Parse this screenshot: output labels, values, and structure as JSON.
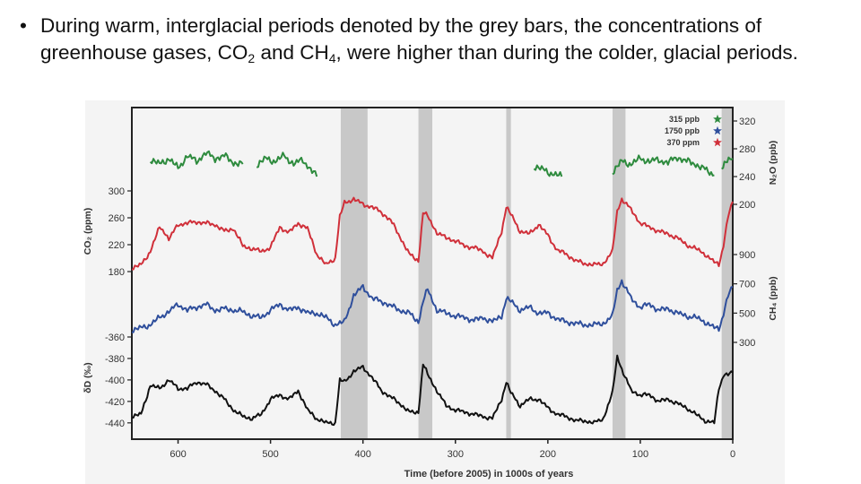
{
  "slide": {
    "bullet_char": "•",
    "text_part1": "During warm, interglacial periods denoted by the grey bars, the concentrations of greenhouse gases, CO",
    "sub_co2": "2",
    "text_part2": " and CH",
    "sub_ch4": "4",
    "text_part3": ", were higher than during the colder, glacial periods."
  },
  "chart_data": {
    "type": "line",
    "title": "",
    "xlabel": "Time (before 2005) in 1000s of years",
    "x_ticks": [
      600,
      500,
      400,
      300,
      200,
      100,
      0
    ],
    "xlim": [
      650,
      0
    ],
    "colors": {
      "n2o": "#2e8b3e",
      "co2": "#d0303a",
      "ch4": "#2f4f9c",
      "dd": "#111111",
      "bars": "#c8c8c8"
    },
    "interglacial_bars": [
      {
        "from": 424,
        "to": 395
      },
      {
        "from": 340,
        "to": 325
      },
      {
        "from": 245,
        "to": 240
      },
      {
        "from": 130,
        "to": 116
      },
      {
        "from": 12,
        "to": 0
      }
    ],
    "legend": [
      {
        "label": "315 ppb",
        "color": "#2e8b3e"
      },
      {
        "label": "1750 ppb",
        "color": "#2f4f9c"
      },
      {
        "label": "370 ppm",
        "color": "#d0303a"
      }
    ],
    "series": [
      {
        "name": "N2O",
        "unit": "ppb",
        "axis_label": "N₂O (ppb)",
        "axis": "right",
        "ylim": [
          200,
          320
        ],
        "ticks": [
          320,
          280,
          240,
          200
        ],
        "segments": [
          {
            "x": [
              630,
              620,
              610,
              600,
              590,
              580,
              570,
              560,
              550,
              540,
              530
            ],
            "y": [
              264,
              258,
              266,
              252,
              270,
              262,
              274,
              266,
              270,
              260,
              258
            ]
          },
          {
            "x": [
              515,
              505,
              495,
              485,
              475,
              465,
              455,
              450
            ],
            "y": [
              256,
              266,
              262,
              270,
              258,
              264,
              248,
              240
            ]
          },
          {
            "x": [
              215,
              205,
              195,
              185
            ],
            "y": [
              254,
              250,
              244,
              240
            ]
          },
          {
            "x": [
              130,
              120,
              110,
              100,
              90,
              80,
              70,
              60,
              50,
              40,
              30,
              20
            ],
            "y": [
              246,
              262,
              258,
              266,
              262,
              264,
              260,
              268,
              262,
              258,
              250,
              242
            ]
          },
          {
            "x": [
              12,
              6,
              0
            ],
            "y": [
              254,
              262,
              266
            ]
          }
        ]
      },
      {
        "name": "CO2",
        "unit": "ppm",
        "axis_label": "CO₂ (ppm)",
        "axis": "left",
        "ylim": [
          160,
          320
        ],
        "ticks": [
          300,
          260,
          220,
          180
        ],
        "x": [
          650,
          640,
          630,
          620,
          615,
          610,
          600,
          590,
          580,
          570,
          560,
          550,
          540,
          530,
          520,
          510,
          500,
          490,
          480,
          470,
          460,
          450,
          440,
          430,
          425,
          420,
          410,
          400,
          390,
          380,
          370,
          360,
          350,
          340,
          335,
          330,
          320,
          310,
          300,
          290,
          280,
          270,
          260,
          250,
          245,
          240,
          230,
          220,
          210,
          200,
          190,
          180,
          170,
          160,
          150,
          140,
          130,
          125,
          120,
          110,
          100,
          90,
          80,
          70,
          60,
          50,
          40,
          30,
          20,
          15,
          10,
          5,
          0
        ],
        "y": [
          185,
          190,
          210,
          246,
          240,
          228,
          250,
          252,
          254,
          252,
          250,
          240,
          244,
          218,
          214,
          210,
          216,
          246,
          238,
          252,
          244,
          206,
          190,
          200,
          262,
          282,
          288,
          280,
          276,
          268,
          256,
          232,
          206,
          196,
          268,
          262,
          238,
          230,
          226,
          218,
          216,
          210,
          200,
          240,
          276,
          265,
          240,
          236,
          250,
          234,
          212,
          206,
          196,
          192,
          190,
          192,
          210,
          270,
          288,
          272,
          252,
          246,
          240,
          236,
          230,
          220,
          214,
          206,
          194,
          190,
          220,
          262,
          284
        ]
      },
      {
        "name": "CH4",
        "unit": "ppb",
        "axis_label": "CH₄ (ppb)",
        "axis": "right",
        "ylim": [
          300,
          900
        ],
        "ticks": [
          900,
          700,
          500,
          300
        ],
        "x": [
          650,
          640,
          630,
          620,
          610,
          600,
          590,
          580,
          570,
          560,
          550,
          540,
          530,
          520,
          510,
          500,
          490,
          480,
          470,
          460,
          450,
          440,
          430,
          420,
          410,
          400,
          390,
          380,
          370,
          360,
          350,
          340,
          335,
          330,
          320,
          310,
          300,
          290,
          280,
          270,
          260,
          250,
          245,
          240,
          230,
          220,
          210,
          200,
          190,
          180,
          170,
          160,
          150,
          140,
          130,
          125,
          120,
          110,
          100,
          90,
          80,
          70,
          60,
          50,
          40,
          30,
          20,
          15,
          10,
          5,
          0
        ],
        "y": [
          380,
          400,
          420,
          470,
          510,
          560,
          520,
          540,
          560,
          520,
          530,
          520,
          510,
          480,
          470,
          520,
          560,
          520,
          540,
          500,
          500,
          470,
          420,
          440,
          620,
          680,
          600,
          580,
          550,
          520,
          500,
          440,
          580,
          660,
          520,
          500,
          480,
          470,
          450,
          470,
          440,
          480,
          600,
          580,
          520,
          540,
          500,
          500,
          460,
          440,
          430,
          420,
          420,
          430,
          480,
          660,
          720,
          600,
          540,
          560,
          520,
          530,
          500,
          480,
          470,
          440,
          400,
          390,
          500,
          620,
          680
        ]
      },
      {
        "name": "δD",
        "unit": "‰",
        "axis_label": "δD (‰)",
        "axis": "left",
        "ylim": [
          -446,
          -350
        ],
        "ticks": [
          -360,
          -380,
          -400,
          -420,
          -440
        ],
        "x": [
          650,
          640,
          630,
          620,
          610,
          600,
          590,
          580,
          570,
          560,
          550,
          540,
          530,
          520,
          510,
          500,
          490,
          480,
          470,
          460,
          450,
          440,
          430,
          425,
          420,
          410,
          400,
          390,
          380,
          370,
          360,
          350,
          340,
          335,
          330,
          320,
          310,
          300,
          290,
          280,
          270,
          260,
          250,
          245,
          240,
          230,
          220,
          210,
          200,
          190,
          180,
          170,
          160,
          150,
          140,
          130,
          125,
          120,
          110,
          100,
          90,
          80,
          70,
          60,
          50,
          40,
          30,
          20,
          15,
          10,
          5,
          0
        ],
        "y": [
          -434,
          -432,
          -405,
          -408,
          -400,
          -408,
          -408,
          -402,
          -404,
          -410,
          -418,
          -428,
          -434,
          -436,
          -432,
          -418,
          -414,
          -418,
          -410,
          -428,
          -436,
          -440,
          -440,
          -400,
          -402,
          -392,
          -388,
          -398,
          -410,
          -416,
          -422,
          -430,
          -430,
          -385,
          -395,
          -410,
          -424,
          -428,
          -430,
          -432,
          -434,
          -436,
          -418,
          -402,
          -412,
          -424,
          -418,
          -418,
          -426,
          -432,
          -434,
          -438,
          -438,
          -440,
          -436,
          -412,
          -378,
          -390,
          -410,
          -414,
          -414,
          -420,
          -418,
          -422,
          -426,
          -432,
          -438,
          -440,
          -408,
          -395,
          -395,
          -393
        ]
      }
    ]
  }
}
